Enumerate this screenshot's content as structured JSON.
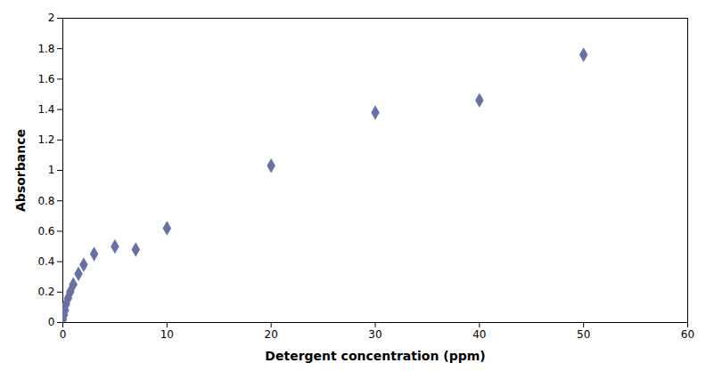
{
  "chart_data": {
    "type": "scatter",
    "x": [
      0.0,
      0.1,
      0.2,
      0.3,
      0.5,
      0.7,
      1.0,
      1.5,
      2.0,
      3.0,
      5.0,
      7.0,
      10.0,
      20.0,
      30.0,
      40.0,
      50.0
    ],
    "y": [
      0.02,
      0.05,
      0.08,
      0.12,
      0.16,
      0.2,
      0.25,
      0.32,
      0.38,
      0.45,
      0.5,
      0.48,
      0.62,
      1.03,
      1.38,
      1.46,
      1.76
    ],
    "color": "#6870a8",
    "marker": "diamond",
    "xlabel": "Detergent concentration (ppm)",
    "ylabel": "Absorbance",
    "xlim": [
      0,
      60
    ],
    "ylim": [
      0,
      2
    ],
    "xticks": [
      0,
      10,
      20,
      30,
      40,
      50,
      60
    ],
    "yticks": [
      0,
      0.2,
      0.4,
      0.6,
      0.8,
      1,
      1.2,
      1.4,
      1.6,
      1.8,
      2
    ],
    "grid": false
  }
}
